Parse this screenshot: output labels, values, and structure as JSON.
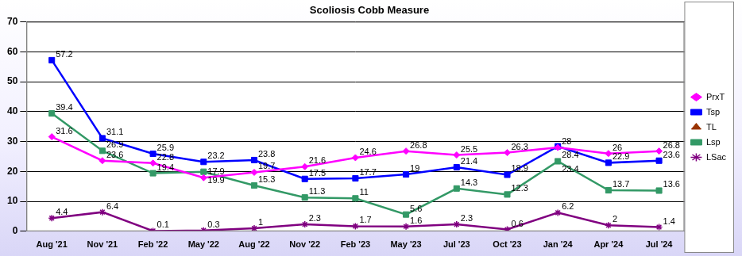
{
  "chart_data": {
    "type": "line",
    "title": "Scoliosis Cobb Measure",
    "categories": [
      "Aug '21",
      "Nov '21",
      "Feb '22",
      "May '22",
      "Aug '22",
      "Nov '22",
      "Feb '23",
      "May '23",
      "Jul '23",
      "Oct '23",
      "Jan '24",
      "Apr '24",
      "Jul '24"
    ],
    "series": [
      {
        "name": "PrxT",
        "color": "#ff00ff",
        "marker": "diamond",
        "values": [
          31.6,
          23.6,
          22.8,
          17.9,
          19.7,
          21.6,
          24.6,
          26.8,
          25.5,
          26.3,
          28,
          26,
          26.8
        ]
      },
      {
        "name": "Tsp",
        "color": "#0000ff",
        "marker": "square",
        "values": [
          57.2,
          31.1,
          25.9,
          23.2,
          23.8,
          17.5,
          17.7,
          19,
          21.4,
          18.9,
          28.4,
          22.9,
          23.6
        ]
      },
      {
        "name": "TL",
        "color": "#993300",
        "marker": "triangle",
        "values": [
          null,
          null,
          null,
          null,
          null,
          null,
          null,
          null,
          null,
          null,
          null,
          null,
          null
        ]
      },
      {
        "name": "Lsp",
        "color": "#339966",
        "marker": "square",
        "values": [
          39.4,
          26.9,
          19.4,
          19.9,
          15.3,
          11.3,
          11,
          5.6,
          14.3,
          12.3,
          23.4,
          13.7,
          13.6
        ]
      },
      {
        "name": "LSac",
        "color": "#800080",
        "marker": "star",
        "values": [
          4.4,
          6.4,
          0.1,
          0.3,
          1,
          2.3,
          1.7,
          1.6,
          2.3,
          0.6,
          6.2,
          2,
          1.4
        ]
      }
    ],
    "ylim": [
      0,
      70
    ],
    "yticks": [
      0,
      10,
      20,
      30,
      40,
      50,
      60,
      70
    ],
    "grid": true,
    "legend": "right",
    "data_labels": true
  }
}
